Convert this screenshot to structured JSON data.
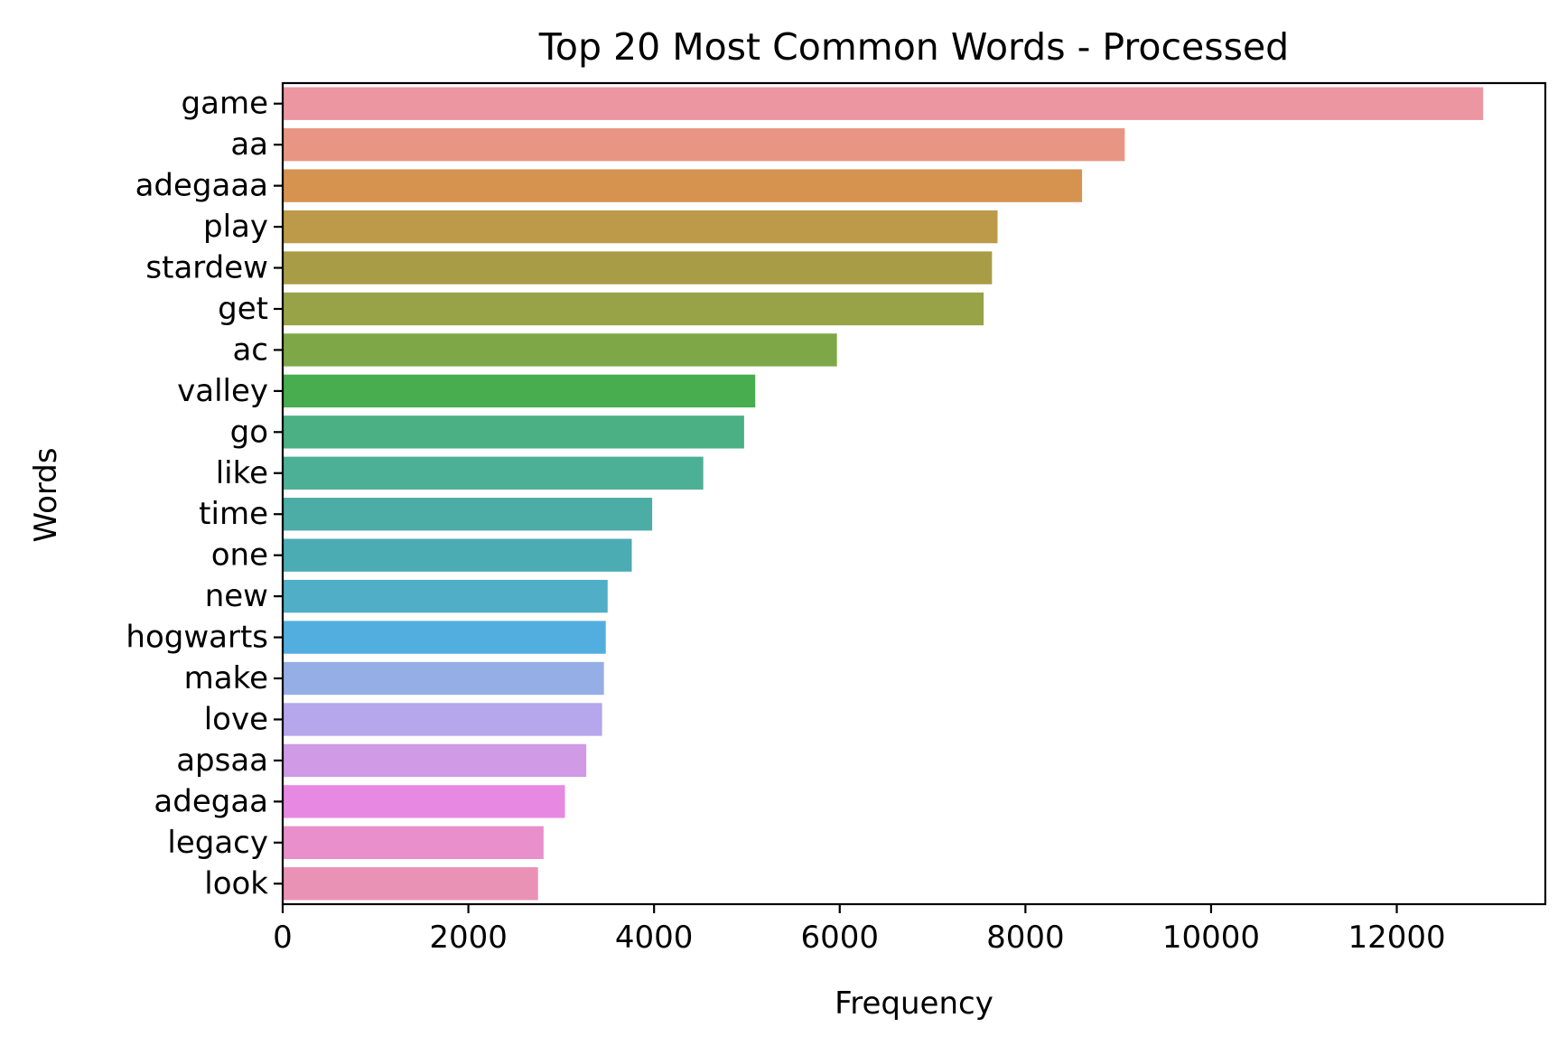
{
  "chart_data": {
    "type": "bar",
    "orientation": "horizontal",
    "title": "Top 20 Most Common Words - Processed",
    "xlabel": "Frequency",
    "ylabel": "Words",
    "xlim": [
      0,
      13600
    ],
    "xticks": [
      0,
      2000,
      4000,
      6000,
      8000,
      10000,
      12000
    ],
    "grid": false,
    "categories": [
      "game",
      "aa",
      "adegaaa",
      "play",
      "stardew",
      "get",
      "ac",
      "valley",
      "go",
      "like",
      "time",
      "one",
      "new",
      "hogwarts",
      "make",
      "love",
      "apsaa",
      "adegaa",
      "legacy",
      "look"
    ],
    "values": [
      12930,
      9070,
      8610,
      7700,
      7640,
      7550,
      5970,
      5090,
      4970,
      4530,
      3980,
      3760,
      3500,
      3480,
      3460,
      3440,
      3270,
      3040,
      2810,
      2750
    ],
    "colors": [
      "#ec96a2",
      "#e89683",
      "#d69350",
      "#bd9a4a",
      "#a89d46",
      "#98a247",
      "#7ea848",
      "#47ad4f",
      "#4bb084",
      "#4bb096",
      "#4caca6",
      "#4cacb4",
      "#50afc7",
      "#53aee0",
      "#95aee6",
      "#b6a6ec",
      "#d09ae6",
      "#e789e3",
      "#e98fcb",
      "#ea91b6"
    ]
  }
}
